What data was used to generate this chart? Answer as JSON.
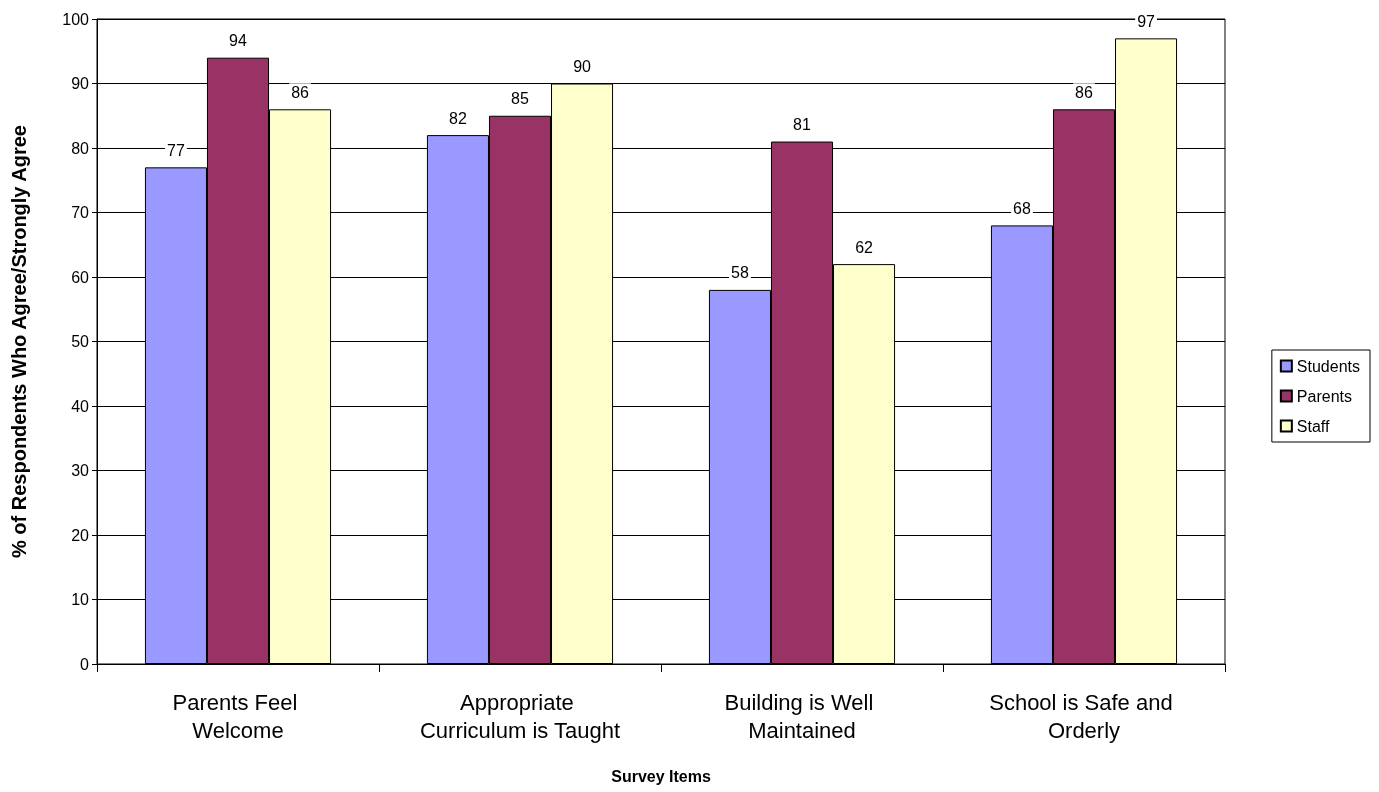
{
  "chart_data": {
    "type": "bar",
    "xlabel": "Survey Items",
    "ylabel": "% of Respondents Who Agree/Strongly Agree",
    "categories": [
      "Parents Feel Welcome",
      "Appropriate Curriculum is Taught",
      "Building is Well Maintained",
      "School is Safe and Orderly"
    ],
    "series": [
      {
        "name": "Students",
        "color": "#9999ff",
        "values": [
          77,
          82,
          58,
          68
        ]
      },
      {
        "name": "Parents",
        "color": "#993366",
        "values": [
          94,
          85,
          81,
          86
        ]
      },
      {
        "name": "Staff",
        "color": "#ffffcc",
        "values": [
          86,
          90,
          62,
          97
        ]
      }
    ],
    "ylim": [
      0,
      100
    ],
    "yticks": [
      0,
      10,
      20,
      30,
      40,
      50,
      60,
      70,
      80,
      90,
      100
    ],
    "grid": "y",
    "legend": "right",
    "data_labels": true
  }
}
